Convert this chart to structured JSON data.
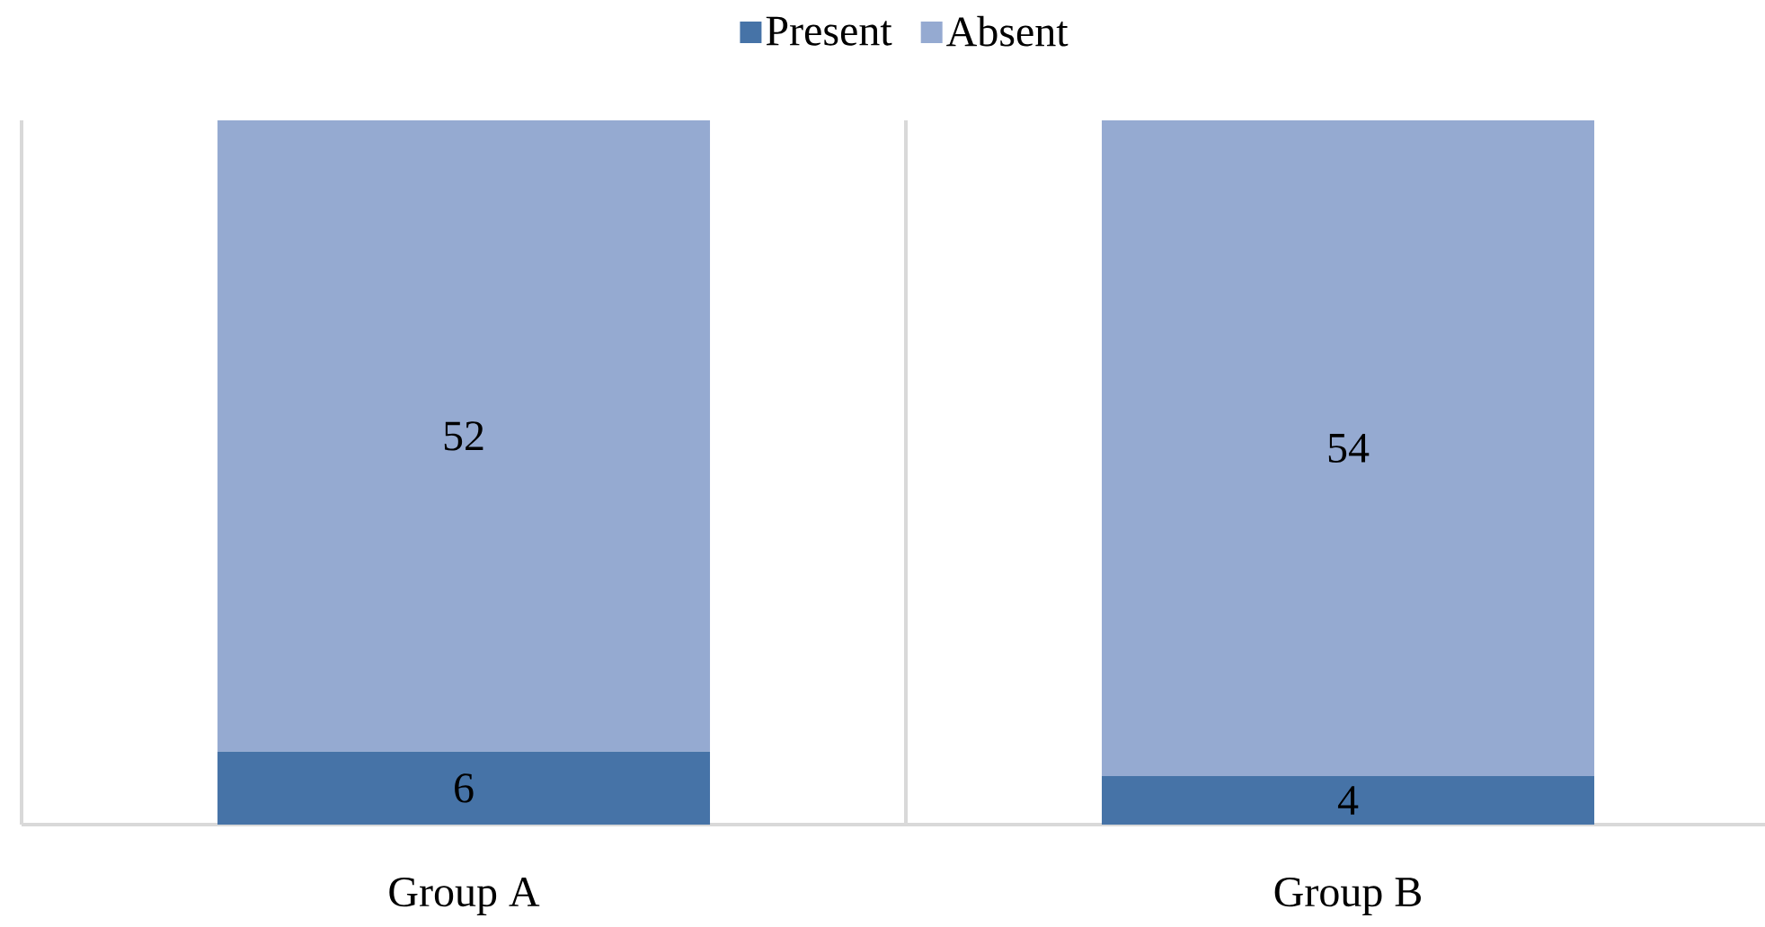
{
  "chart_data": {
    "type": "bar",
    "stacked": true,
    "categories": [
      "Group A",
      "Group B"
    ],
    "series": [
      {
        "name": "Present",
        "color": "#4673a7",
        "values": [
          6,
          4
        ]
      },
      {
        "name": "Absent",
        "color": "#95aad1",
        "values": [
          52,
          54
        ]
      }
    ],
    "data_labels": true,
    "legend": "top",
    "grid": "x",
    "tick_labels": "x"
  }
}
